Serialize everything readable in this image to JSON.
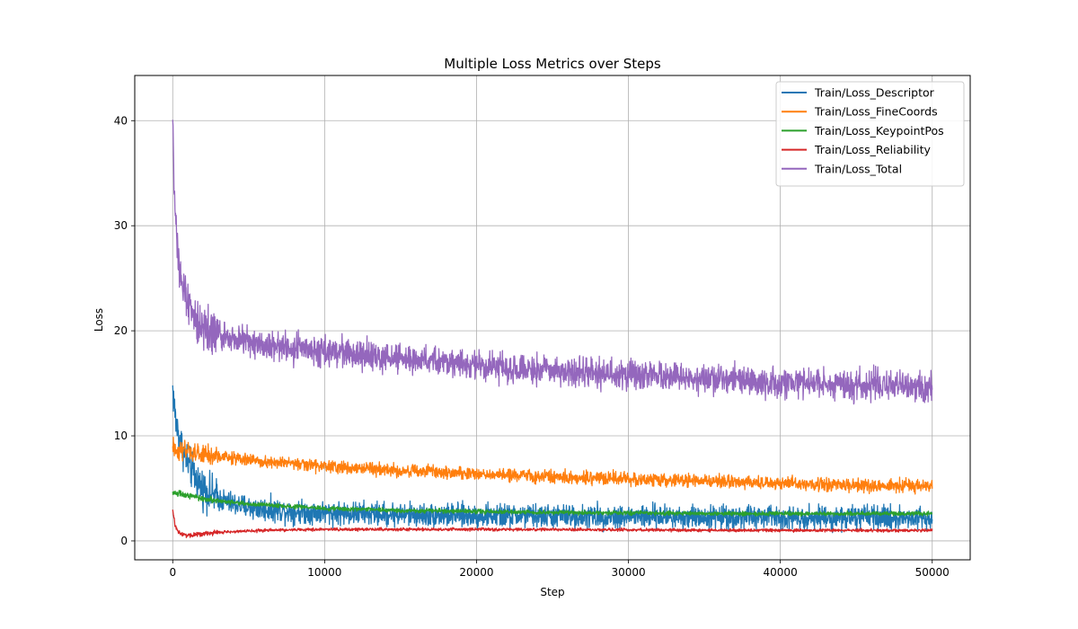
{
  "chart_data": {
    "type": "line",
    "title": "Multiple Loss Metrics over Steps",
    "xlabel": "Step",
    "ylabel": "Loss",
    "xlim": [
      -2500,
      52500
    ],
    "ylim": [
      -1.8,
      44.3
    ],
    "xticks": [
      0,
      10000,
      20000,
      30000,
      40000,
      50000
    ],
    "yticks": [
      0,
      10,
      20,
      30,
      40
    ],
    "grid": true,
    "legend_position": "top-right",
    "series": [
      {
        "name": "Train/Loss_Descriptor",
        "color": "#1f77b4",
        "noise": 0.55,
        "x": [
          0,
          100,
          200,
          400,
          600,
          800,
          1000,
          1500,
          2000,
          3000,
          4000,
          5000,
          6000,
          8000,
          10000,
          15000,
          20000,
          25000,
          30000,
          35000,
          40000,
          45000,
          50000
        ],
        "y": [
          14.5,
          12.8,
          11.4,
          10.0,
          9.0,
          8.2,
          7.4,
          6.0,
          5.0,
          4.0,
          3.5,
          3.2,
          3.0,
          2.8,
          2.7,
          2.5,
          2.4,
          2.35,
          2.3,
          2.3,
          2.25,
          2.2,
          2.2
        ]
      },
      {
        "name": "Train/Loss_FineCoords",
        "color": "#ff7f0e",
        "noise": 0.3,
        "x": [
          0,
          1000,
          2000,
          5000,
          10000,
          15000,
          20000,
          25000,
          30000,
          35000,
          40000,
          45000,
          50000
        ],
        "y": [
          8.8,
          8.4,
          8.2,
          7.7,
          7.1,
          6.7,
          6.4,
          6.1,
          5.9,
          5.7,
          5.5,
          5.3,
          5.2
        ]
      },
      {
        "name": "Train/Loss_KeypointPos",
        "color": "#2ca02c",
        "noise": 0.1,
        "x": [
          0,
          1000,
          2000,
          5000,
          10000,
          15000,
          20000,
          25000,
          30000,
          35000,
          40000,
          45000,
          50000
        ],
        "y": [
          4.6,
          4.3,
          4.0,
          3.5,
          3.1,
          2.9,
          2.8,
          2.7,
          2.65,
          2.6,
          2.6,
          2.6,
          2.6
        ]
      },
      {
        "name": "Train/Loss_Reliability",
        "color": "#d62728",
        "noise": 0.07,
        "x": [
          0,
          150,
          400,
          800,
          1200,
          2000,
          4000,
          6000,
          10000,
          20000,
          30000,
          40000,
          50000
        ],
        "y": [
          2.9,
          1.5,
          0.8,
          0.55,
          0.55,
          0.7,
          0.9,
          1.0,
          1.1,
          1.1,
          1.05,
          1.0,
          1.0
        ]
      },
      {
        "name": "Train/Loss_Total",
        "color": "#9467bd",
        "noise": 0.7,
        "x": [
          0,
          50,
          150,
          300,
          500,
          800,
          1000,
          1500,
          2000,
          3000,
          5000,
          8000,
          10000,
          15000,
          20000,
          25000,
          30000,
          35000,
          40000,
          45000,
          50000
        ],
        "y": [
          41.5,
          37.0,
          32.0,
          28.5,
          25.5,
          23.5,
          22.5,
          21.0,
          20.3,
          19.6,
          19.0,
          18.3,
          18.0,
          17.3,
          16.7,
          16.2,
          15.8,
          15.4,
          15.1,
          14.9,
          14.6
        ]
      }
    ]
  }
}
